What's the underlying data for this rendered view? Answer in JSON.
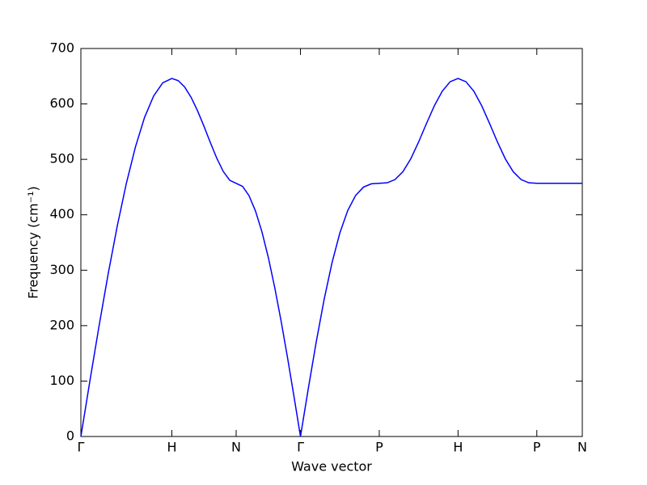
{
  "chart_data": {
    "type": "line",
    "xlabel": "Wave vector",
    "ylabel": "Frequency (cm⁻¹)",
    "color": "#0000ff",
    "xlim": [
      0,
      5.5123
    ],
    "ylim": [
      0,
      700
    ],
    "yticks": [
      0,
      100,
      200,
      300,
      400,
      500,
      600,
      700
    ],
    "xticks": [
      {
        "value": 0,
        "label": "Γ"
      },
      {
        "value": 1,
        "label": "H"
      },
      {
        "value": 1.7071,
        "label": "N"
      },
      {
        "value": 2.4142,
        "label": "Γ"
      },
      {
        "value": 3.2802,
        "label": "P"
      },
      {
        "value": 4.1463,
        "label": "H"
      },
      {
        "value": 5.0123,
        "label": "P"
      },
      {
        "value": 5.5123,
        "label": "N"
      }
    ],
    "x": [
      0,
      0.1,
      0.2,
      0.3,
      0.4,
      0.5,
      0.6,
      0.7,
      0.8,
      0.9,
      1,
      1.0707,
      1.1414,
      1.2121,
      1.2828,
      1.3536,
      1.4243,
      1.495,
      1.5657,
      1.6364,
      1.7071,
      1.7778,
      1.8485,
      1.9192,
      1.9899,
      2.0607,
      2.1314,
      2.2021,
      2.2728,
      2.3435,
      2.4142,
      2.5008,
      2.5874,
      2.674,
      2.7606,
      2.8472,
      2.9338,
      3.0204,
      3.107,
      3.1936,
      3.2802,
      3.3668,
      3.4534,
      3.54,
      3.6266,
      3.7132,
      3.7998,
      3.8864,
      3.973,
      4.0596,
      4.1463,
      4.2329,
      4.3195,
      4.4061,
      4.4927,
      4.5793,
      4.6659,
      4.7525,
      4.8391,
      4.9257,
      5.0123,
      5.2623,
      5.5123
    ],
    "values": [
      0,
      101.1,
      199.6,
      293.3,
      379.7,
      456.8,
      522.6,
      575.6,
      614.4,
      638.1,
      646,
      642.0,
      630.4,
      611.8,
      587.6,
      559.5,
      529.9,
      501.7,
      478.1,
      462.3,
      456.8,
      451.2,
      434.5,
      407.0,
      369.6,
      323.0,
      268.5,
      207.4,
      141.2,
      71.4,
      0,
      87.2,
      170.7,
      247.1,
      313.3,
      367.3,
      407.8,
      434.9,
      450.0,
      455.9,
      456.8,
      457.7,
      463.5,
      477.7,
      501.0,
      531.4,
      564.9,
      596.9,
      623.0,
      640.1,
      646,
      640.1,
      623.0,
      596.9,
      564.9,
      531.4,
      501.0,
      477.7,
      463.5,
      457.7,
      456.8,
      456.8,
      456.8
    ]
  }
}
